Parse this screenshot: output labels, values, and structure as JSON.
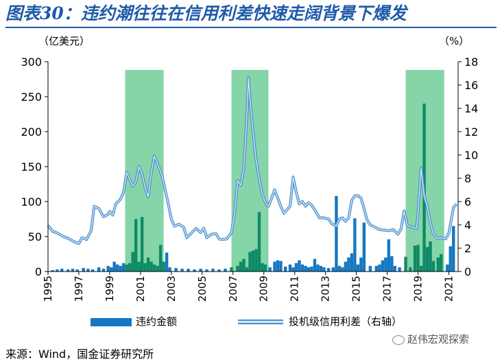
{
  "title": "图表30：违约潮往往在信用利差快速走阔背景下爆发",
  "units": {
    "left": "（亿美元）",
    "right": "（%）"
  },
  "source": "来源：Wind，国金证券研究所",
  "watermark": "赵伟宏观探索",
  "colors": {
    "bar": "#1578c2",
    "bar_in_band": "#0e8a67",
    "line": "#4a8fcf",
    "band": "#86d5a8",
    "title": "#1e5aa8"
  },
  "legend": [
    {
      "label": "违约金额",
      "icon": "bar-swatch"
    },
    {
      "label": "投机级信用利差（右轴）",
      "icon": "double-line-swatch"
    }
  ],
  "chart_data": {
    "type": "bar",
    "xlim": [
      1995,
      2021.6
    ],
    "x_ticks": [
      "1995",
      "1997",
      "1999",
      "2001",
      "2003",
      "2005",
      "2007",
      "2009",
      "2011",
      "2013",
      "2015",
      "2017",
      "2019",
      "2021"
    ],
    "ylim_left": [
      0,
      300
    ],
    "y_ticks_left": [
      "0",
      "50",
      "100",
      "150",
      "200",
      "250",
      "300"
    ],
    "ylim_right": [
      0,
      18
    ],
    "y_ticks_right": [
      "0",
      "2",
      "4",
      "6",
      "8",
      "10",
      "12",
      "14",
      "16",
      "18"
    ],
    "shaded_periods": [
      [
        2000.0,
        2002.5
      ],
      [
        2006.9,
        2009.3
      ],
      [
        2018.2,
        2020.7
      ]
    ],
    "series": [
      {
        "name": "违约金额",
        "type": "bar",
        "axis": "left",
        "points": [
          [
            1995.3,
            2
          ],
          [
            1995.6,
            3
          ],
          [
            1995.9,
            4
          ],
          [
            1996.3,
            3
          ],
          [
            1996.6,
            4
          ],
          [
            1996.9,
            3
          ],
          [
            1997.3,
            5
          ],
          [
            1997.6,
            4
          ],
          [
            1997.9,
            3
          ],
          [
            1998.3,
            6
          ],
          [
            1998.6,
            4
          ],
          [
            1998.9,
            8
          ],
          [
            1999.1,
            6
          ],
          [
            1999.3,
            14
          ],
          [
            1999.5,
            10
          ],
          [
            1999.7,
            8
          ],
          [
            1999.9,
            12
          ],
          [
            2000.1,
            10
          ],
          [
            2000.3,
            12
          ],
          [
            2000.5,
            28
          ],
          [
            2000.7,
            75
          ],
          [
            2000.9,
            14
          ],
          [
            2001.1,
            78
          ],
          [
            2001.3,
            12
          ],
          [
            2001.5,
            20
          ],
          [
            2001.7,
            14
          ],
          [
            2001.9,
            10
          ],
          [
            2002.1,
            8
          ],
          [
            2002.3,
            38
          ],
          [
            2002.5,
            14
          ],
          [
            2002.7,
            27
          ],
          [
            2002.9,
            6
          ],
          [
            2003.3,
            5
          ],
          [
            2003.7,
            4
          ],
          [
            2004.1,
            4
          ],
          [
            2004.5,
            3
          ],
          [
            2004.9,
            4
          ],
          [
            2005.3,
            3
          ],
          [
            2005.7,
            4
          ],
          [
            2006.1,
            3
          ],
          [
            2006.5,
            4
          ],
          [
            2006.9,
            6
          ],
          [
            2007.3,
            8
          ],
          [
            2007.5,
            14
          ],
          [
            2007.7,
            18
          ],
          [
            2007.9,
            6
          ],
          [
            2008.1,
            28
          ],
          [
            2008.3,
            30
          ],
          [
            2008.5,
            32
          ],
          [
            2008.7,
            85
          ],
          [
            2008.9,
            12
          ],
          [
            2009.1,
            10
          ],
          [
            2009.4,
            6
          ],
          [
            2009.7,
            14
          ],
          [
            2009.9,
            16
          ],
          [
            2010.1,
            15
          ],
          [
            2010.4,
            7
          ],
          [
            2010.7,
            10
          ],
          [
            2010.9,
            6
          ],
          [
            2011.1,
            12
          ],
          [
            2011.3,
            16
          ],
          [
            2011.5,
            10
          ],
          [
            2011.7,
            8
          ],
          [
            2011.9,
            6
          ],
          [
            2012.1,
            7
          ],
          [
            2012.3,
            18
          ],
          [
            2012.5,
            10
          ],
          [
            2012.7,
            8
          ],
          [
            2012.9,
            6
          ],
          [
            2013.2,
            5
          ],
          [
            2013.5,
            6
          ],
          [
            2013.7,
            108
          ],
          [
            2013.9,
            8
          ],
          [
            2014.1,
            6
          ],
          [
            2014.3,
            14
          ],
          [
            2014.5,
            20
          ],
          [
            2014.7,
            26
          ],
          [
            2014.9,
            76
          ],
          [
            2015.1,
            10
          ],
          [
            2015.3,
            20
          ],
          [
            2015.5,
            70
          ],
          [
            2015.9,
            8
          ],
          [
            2016.3,
            8
          ],
          [
            2016.5,
            10
          ],
          [
            2016.7,
            16
          ],
          [
            2016.9,
            20
          ],
          [
            2017.1,
            46
          ],
          [
            2017.3,
            22
          ],
          [
            2017.5,
            8
          ],
          [
            2017.8,
            6
          ],
          [
            2018.2,
            21
          ],
          [
            2018.5,
            6
          ],
          [
            2018.8,
            37
          ],
          [
            2019.0,
            38
          ],
          [
            2019.2,
            8
          ],
          [
            2019.4,
            240
          ],
          [
            2019.6,
            35
          ],
          [
            2019.8,
            43
          ],
          [
            2020.0,
            15
          ],
          [
            2020.3,
            20
          ],
          [
            2020.5,
            25
          ],
          [
            2020.9,
            10
          ],
          [
            2021.1,
            36
          ],
          [
            2021.3,
            65
          ]
        ]
      },
      {
        "name": "投机级信用利差（右轴）",
        "type": "line",
        "axis": "right",
        "points": [
          [
            1995.0,
            3.95
          ],
          [
            1995.3,
            3.45
          ],
          [
            1995.6,
            3.3
          ],
          [
            1996.0,
            3.0
          ],
          [
            1996.3,
            2.85
          ],
          [
            1996.7,
            2.55
          ],
          [
            1997.0,
            2.4
          ],
          [
            1997.2,
            2.9
          ],
          [
            1997.5,
            2.75
          ],
          [
            1997.8,
            3.5
          ],
          [
            1998.0,
            5.6
          ],
          [
            1998.3,
            5.4
          ],
          [
            1998.6,
            4.7
          ],
          [
            1998.9,
            4.9
          ],
          [
            1999.0,
            5.15
          ],
          [
            1999.2,
            4.85
          ],
          [
            1999.4,
            5.8
          ],
          [
            1999.7,
            6.2
          ],
          [
            1999.9,
            6.8
          ],
          [
            2000.1,
            8.5
          ],
          [
            2000.3,
            7.9
          ],
          [
            2000.5,
            7.3
          ],
          [
            2000.7,
            7.7
          ],
          [
            2000.9,
            9.0
          ],
          [
            2001.1,
            8.4
          ],
          [
            2001.3,
            7.2
          ],
          [
            2001.5,
            6.4
          ],
          [
            2001.7,
            8.5
          ],
          [
            2001.9,
            9.9
          ],
          [
            2002.1,
            9.3
          ],
          [
            2002.4,
            8.2
          ],
          [
            2002.6,
            7.0
          ],
          [
            2002.8,
            5.8
          ],
          [
            2003.0,
            4.5
          ],
          [
            2003.2,
            3.9
          ],
          [
            2003.5,
            4.05
          ],
          [
            2003.8,
            3.8
          ],
          [
            2004.0,
            2.9
          ],
          [
            2004.3,
            3.3
          ],
          [
            2004.6,
            3.7
          ],
          [
            2004.9,
            3.35
          ],
          [
            2005.1,
            3.7
          ],
          [
            2005.3,
            2.9
          ],
          [
            2005.6,
            3.2
          ],
          [
            2005.9,
            3.25
          ],
          [
            2006.1,
            2.8
          ],
          [
            2006.3,
            2.75
          ],
          [
            2006.6,
            2.8
          ],
          [
            2006.9,
            3.35
          ],
          [
            2007.1,
            5.0
          ],
          [
            2007.3,
            7.8
          ],
          [
            2007.5,
            7.4
          ],
          [
            2007.7,
            8.8
          ],
          [
            2007.9,
            13.4
          ],
          [
            2008.0,
            16.6
          ],
          [
            2008.1,
            14.8
          ],
          [
            2008.3,
            12.0
          ],
          [
            2008.5,
            9.5
          ],
          [
            2008.7,
            8.0
          ],
          [
            2008.9,
            6.6
          ],
          [
            2009.1,
            5.9
          ],
          [
            2009.3,
            5.6
          ],
          [
            2009.5,
            6.3
          ],
          [
            2009.7,
            7.0
          ],
          [
            2009.9,
            6.3
          ],
          [
            2010.1,
            5.6
          ],
          [
            2010.3,
            5.0
          ],
          [
            2010.5,
            5.3
          ],
          [
            2010.7,
            5.6
          ],
          [
            2010.9,
            8.1
          ],
          [
            2011.1,
            6.8
          ],
          [
            2011.3,
            5.8
          ],
          [
            2011.5,
            6.0
          ],
          [
            2011.7,
            5.6
          ],
          [
            2011.9,
            5.9
          ],
          [
            2012.1,
            5.7
          ],
          [
            2012.3,
            5.3
          ],
          [
            2012.6,
            4.6
          ],
          [
            2012.9,
            4.6
          ],
          [
            2013.2,
            4.5
          ],
          [
            2013.4,
            4.1
          ],
          [
            2013.7,
            3.9
          ],
          [
            2013.9,
            4.5
          ],
          [
            2014.1,
            4.6
          ],
          [
            2014.3,
            4.3
          ],
          [
            2014.5,
            4.6
          ],
          [
            2014.7,
            6.1
          ],
          [
            2014.9,
            6.5
          ],
          [
            2015.1,
            6.5
          ],
          [
            2015.3,
            6.3
          ],
          [
            2015.5,
            5.4
          ],
          [
            2015.7,
            4.4
          ],
          [
            2015.9,
            4.0
          ],
          [
            2016.2,
            3.8
          ],
          [
            2016.5,
            3.6
          ],
          [
            2016.8,
            3.55
          ],
          [
            2017.1,
            3.5
          ],
          [
            2017.4,
            3.6
          ],
          [
            2017.7,
            3.2
          ],
          [
            2017.9,
            3.65
          ],
          [
            2018.1,
            5.2
          ],
          [
            2018.3,
            3.95
          ],
          [
            2018.6,
            3.8
          ],
          [
            2018.9,
            3.7
          ],
          [
            2019.0,
            5.0
          ],
          [
            2019.2,
            8.9
          ],
          [
            2019.4,
            6.5
          ],
          [
            2019.6,
            5.6
          ],
          [
            2019.8,
            4.2
          ],
          [
            2020.0,
            3.2
          ],
          [
            2020.3,
            2.8
          ],
          [
            2020.5,
            2.9
          ],
          [
            2020.8,
            2.8
          ],
          [
            2021.0,
            3.3
          ],
          [
            2021.3,
            5.5
          ],
          [
            2021.5,
            5.8
          ]
        ]
      }
    ],
    "legend_position": "bottom",
    "grid": false
  }
}
